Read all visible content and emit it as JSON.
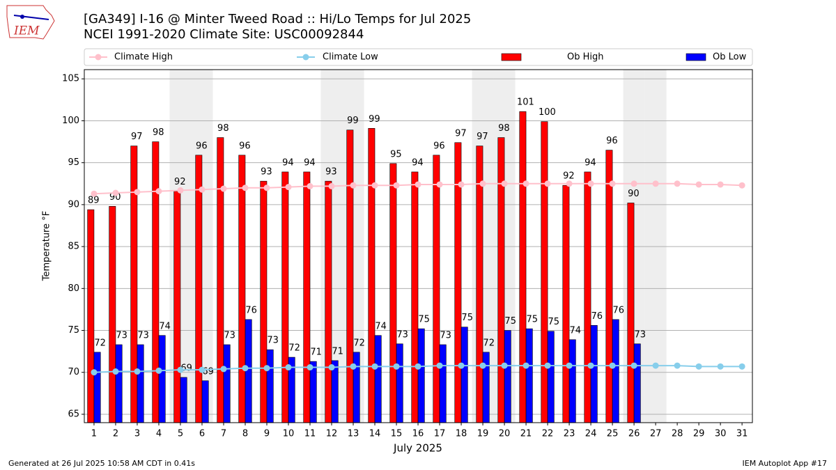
{
  "chart_data": {
    "type": "bar",
    "title": "[GA349] I-16 @ Minter Tweed Road :: Hi/Lo Temps for Jul 2025",
    "subtitle": "NCEI 1991-2020 Climate Site: USC00092844",
    "logo_text": "IEM",
    "y_label": "Temperature °F",
    "x_label": "July 2025",
    "footnote_left": "Generated at 26 Jul 2025 10:58 AM CDT in 0.41s",
    "footnote_right": "IEM Autoplot App #17",
    "x": [
      1,
      2,
      3,
      4,
      5,
      6,
      7,
      8,
      9,
      10,
      11,
      12,
      13,
      14,
      15,
      16,
      17,
      18,
      19,
      20,
      21,
      22,
      23,
      24,
      25,
      26,
      27,
      28,
      29,
      30,
      31
    ],
    "xlim": [
      0.55,
      31.48
    ],
    "xticks": [
      1,
      2,
      3,
      4,
      5,
      6,
      7,
      8,
      9,
      10,
      11,
      12,
      13,
      14,
      15,
      16,
      17,
      18,
      19,
      20,
      21,
      22,
      23,
      24,
      25,
      26,
      27,
      28,
      29,
      30,
      31
    ],
    "ylim": [
      64.0,
      106.1
    ],
    "yticks": [
      65,
      70,
      75,
      80,
      85,
      90,
      95,
      100,
      105
    ],
    "grid": true,
    "series": [
      {
        "name": "Climate High",
        "type": "line",
        "color": "#ffc0cb",
        "values": [
          91.3,
          91.4,
          91.5,
          91.6,
          91.7,
          91.8,
          91.9,
          92.0,
          92.0,
          92.1,
          92.2,
          92.2,
          92.3,
          92.3,
          92.3,
          92.4,
          92.4,
          92.4,
          92.5,
          92.5,
          92.5,
          92.5,
          92.5,
          92.5,
          92.5,
          92.5,
          92.5,
          92.5,
          92.4,
          92.4,
          92.3
        ]
      },
      {
        "name": "Climate Low",
        "type": "line",
        "color": "#87ceeb",
        "values": [
          70.0,
          70.1,
          70.1,
          70.2,
          70.3,
          70.3,
          70.4,
          70.5,
          70.5,
          70.6,
          70.6,
          70.6,
          70.7,
          70.7,
          70.7,
          70.7,
          70.8,
          70.8,
          70.8,
          70.8,
          70.8,
          70.8,
          70.8,
          70.8,
          70.8,
          70.8,
          70.8,
          70.8,
          70.7,
          70.7,
          70.7
        ]
      },
      {
        "name": "Ob High",
        "type": "bar",
        "color": "#ff0000",
        "values": [
          89.4,
          89.8,
          97.0,
          97.5,
          91.6,
          95.9,
          98.0,
          95.9,
          92.8,
          93.9,
          93.9,
          92.8,
          98.9,
          99.1,
          94.9,
          93.9,
          95.9,
          97.4,
          97.0,
          98.0,
          101.1,
          99.9,
          92.3,
          93.9,
          96.5,
          90.2,
          null,
          null,
          null,
          null,
          null
        ],
        "value_labels": [
          "89",
          "90",
          "97",
          "98",
          "92",
          "96",
          "98",
          "96",
          "93",
          "94",
          "94",
          "93",
          "99",
          "99",
          "95",
          "94",
          "96",
          "97",
          "97",
          "98",
          "101",
          "100",
          "92",
          "94",
          "96",
          "90",
          null,
          null,
          null,
          null,
          null
        ]
      },
      {
        "name": "Ob Low",
        "type": "bar",
        "color": "#0000ff",
        "values": [
          72.4,
          73.3,
          73.3,
          74.4,
          69.4,
          69.0,
          73.3,
          76.3,
          72.7,
          71.8,
          71.3,
          71.4,
          72.4,
          74.4,
          73.4,
          75.2,
          73.3,
          75.4,
          72.4,
          75.0,
          75.2,
          74.9,
          73.9,
          75.6,
          76.3,
          73.4,
          null,
          null,
          null,
          null,
          null
        ],
        "value_labels": [
          "72",
          "73",
          "73",
          "74",
          "69",
          "69",
          "73",
          "76",
          "73",
          "72",
          "71",
          "71",
          "72",
          "74",
          "73",
          "75",
          "73",
          "75",
          "72",
          "75",
          "75",
          "75",
          "74",
          "76",
          "76",
          "73",
          null,
          null,
          null,
          null,
          null
        ]
      }
    ],
    "legend": "top"
  }
}
